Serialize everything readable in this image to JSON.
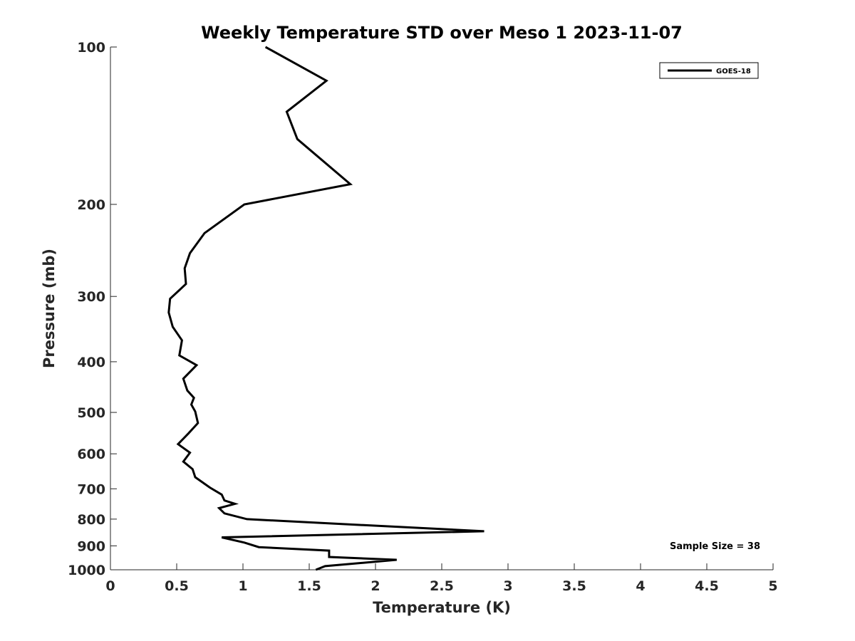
{
  "chart_data": {
    "type": "line",
    "title": "Weekly Temperature STD over Meso 1 2023-11-07",
    "xlabel": "Temperature (K)",
    "ylabel": "Pressure (mb)",
    "xlim": [
      0,
      5
    ],
    "ylim": [
      100,
      1000
    ],
    "y_scale": "log",
    "y_reversed": true,
    "x_ticks": [
      "0",
      "0.5",
      "1",
      "1.5",
      "2",
      "2.5",
      "3",
      "3.5",
      "4",
      "4.5",
      "5"
    ],
    "y_ticks": [
      "100",
      "200",
      "300",
      "400",
      "500",
      "600",
      "700",
      "800",
      "900",
      "1000"
    ],
    "grid": false,
    "legend_position": "top-right",
    "annotation": "Sample Size = 38",
    "series": [
      {
        "name": "GOES-18",
        "color": "#000000",
        "points": [
          [
            1.17,
            100
          ],
          [
            1.63,
            116
          ],
          [
            1.33,
            133
          ],
          [
            1.41,
            150
          ],
          [
            1.81,
            183
          ],
          [
            1.01,
            200
          ],
          [
            0.71,
            227
          ],
          [
            0.6,
            248
          ],
          [
            0.56,
            265
          ],
          [
            0.57,
            284
          ],
          [
            0.45,
            303
          ],
          [
            0.44,
            322
          ],
          [
            0.47,
            343
          ],
          [
            0.54,
            364
          ],
          [
            0.52,
            389
          ],
          [
            0.65,
            406
          ],
          [
            0.55,
            431
          ],
          [
            0.58,
            454
          ],
          [
            0.63,
            469
          ],
          [
            0.61,
            483
          ],
          [
            0.64,
            498
          ],
          [
            0.66,
            524
          ],
          [
            0.59,
            548
          ],
          [
            0.51,
            575
          ],
          [
            0.6,
            597
          ],
          [
            0.55,
            621
          ],
          [
            0.62,
            642
          ],
          [
            0.64,
            665
          ],
          [
            0.75,
            696
          ],
          [
            0.84,
            718
          ],
          [
            0.86,
            737
          ],
          [
            0.94,
            748
          ],
          [
            0.82,
            762
          ],
          [
            0.86,
            780
          ],
          [
            1.03,
            800
          ],
          [
            2.82,
            844
          ],
          [
            0.84,
            867
          ],
          [
            1.01,
            887
          ],
          [
            1.12,
            905
          ],
          [
            1.65,
            919
          ],
          [
            1.65,
            945
          ],
          [
            2.16,
            957
          ],
          [
            1.62,
            984
          ],
          [
            1.55,
            1000
          ]
        ]
      }
    ]
  }
}
